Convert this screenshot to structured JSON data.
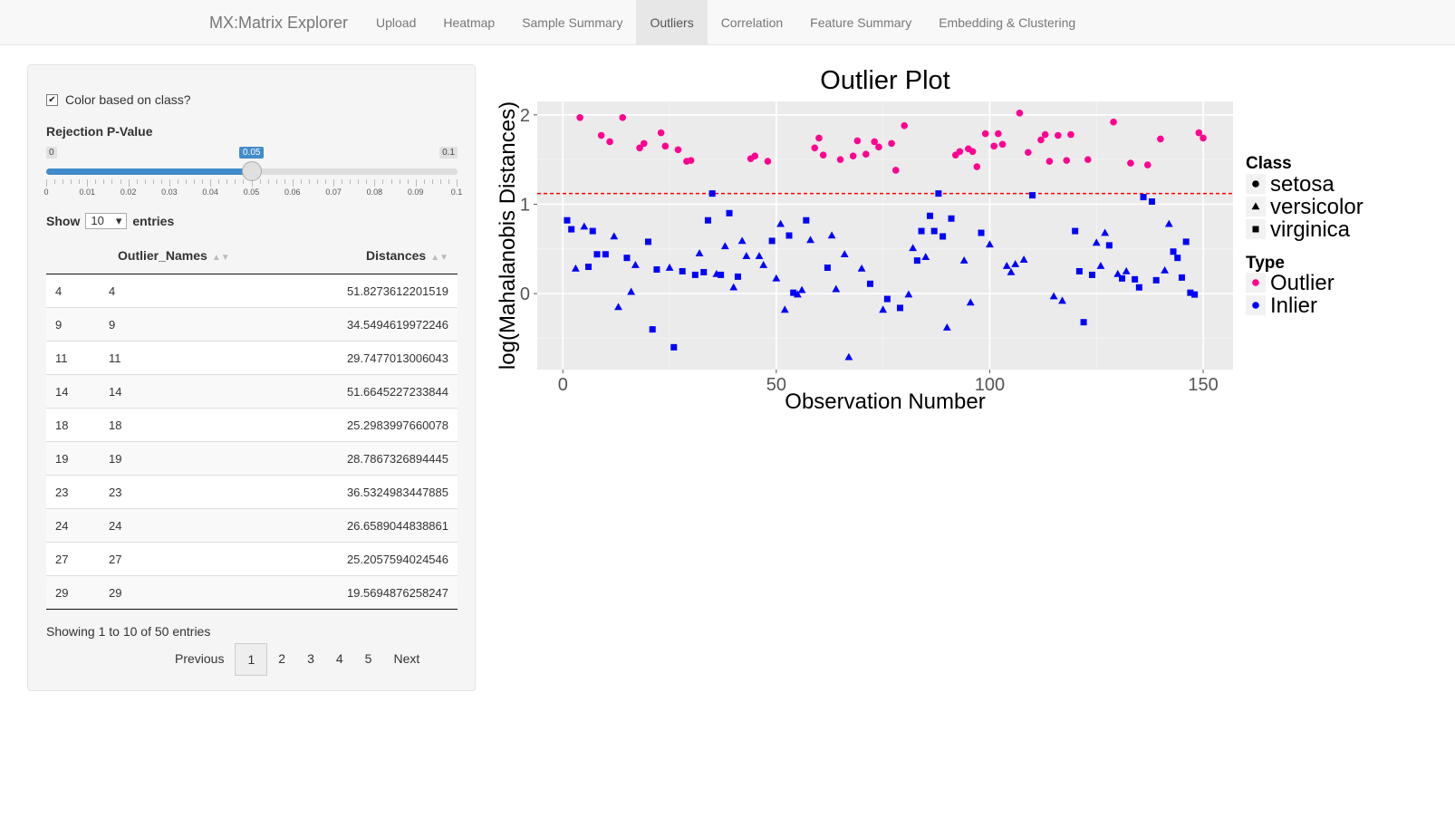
{
  "app_title": "MX:Matrix Explorer",
  "nav_items": [
    "Upload",
    "Heatmap",
    "Sample Summary",
    "Outliers",
    "Correlation",
    "Feature Summary",
    "Embedding & Clustering"
  ],
  "active_tab": "Outliers",
  "sidebar": {
    "checkbox_label": "Color based on class?",
    "checkbox_checked": true,
    "slider": {
      "label": "Rejection P-Value",
      "min": "0",
      "max": "0.1",
      "value": "0.05",
      "fraction": 0.5,
      "ticks": [
        "0",
        "0.01",
        "0.02",
        "0.03",
        "0.04",
        "0.05",
        "0.06",
        "0.07",
        "0.08",
        "0.09",
        "0.1"
      ]
    },
    "show_label": "Show",
    "show_value": "10",
    "entries_label": "entries",
    "table": {
      "headers": [
        "",
        "Outlier_Names",
        "Distances"
      ],
      "rows": [
        [
          "4",
          "4",
          "51.8273612201519"
        ],
        [
          "9",
          "9",
          "34.5494619972246"
        ],
        [
          "11",
          "11",
          "29.7477013006043"
        ],
        [
          "14",
          "14",
          "51.6645227233844"
        ],
        [
          "18",
          "18",
          "25.2983997660078"
        ],
        [
          "19",
          "19",
          "28.7867326894445"
        ],
        [
          "23",
          "23",
          "36.5324983447885"
        ],
        [
          "24",
          "24",
          "26.6589044838861"
        ],
        [
          "27",
          "27",
          "25.2057594024546"
        ],
        [
          "29",
          "29",
          "19.5694876258247"
        ]
      ]
    },
    "info": "Showing 1 to 10 of 50 entries",
    "pager": {
      "previous": "Previous",
      "pages": [
        "1",
        "2",
        "3",
        "4",
        "5"
      ],
      "current": "1",
      "next": "Next"
    }
  },
  "chart_data": {
    "type": "scatter",
    "title": "Outlier Plot",
    "xlabel": "Observation Number",
    "ylabel": "log(Mahalanobis Distances)",
    "xlim": [
      -6,
      157
    ],
    "ylim": [
      -0.85,
      2.15
    ],
    "xticks": [
      0,
      50,
      100,
      150
    ],
    "yticks": [
      0,
      1,
      2
    ],
    "threshold": 1.12,
    "grid": true,
    "legend_position": "right",
    "colors": {
      "outlier": "#ff0090",
      "inlier": "#0000ff",
      "threshold": "#ff0000",
      "panel": "#ebebeb"
    },
    "legend": {
      "class_title": "Class",
      "classes": [
        "setosa",
        "versicolor",
        "virginica"
      ],
      "type_title": "Type",
      "types": [
        "Outlier",
        "Inlier"
      ]
    },
    "points": [
      [
        4,
        1.97,
        "o",
        "s"
      ],
      [
        9,
        1.77,
        "o",
        "s"
      ],
      [
        11,
        1.7,
        "o",
        "s"
      ],
      [
        14,
        1.97,
        "o",
        "s"
      ],
      [
        18,
        1.63,
        "o",
        "s"
      ],
      [
        19,
        1.68,
        "o",
        "s"
      ],
      [
        23,
        1.8,
        "o",
        "s"
      ],
      [
        24,
        1.65,
        "o",
        "s"
      ],
      [
        27,
        1.61,
        "o",
        "s"
      ],
      [
        29,
        1.48,
        "o",
        "s"
      ],
      [
        30,
        1.49,
        "o",
        "s"
      ],
      [
        44,
        1.51,
        "o",
        "s"
      ],
      [
        45,
        1.54,
        "o",
        "s"
      ],
      [
        48,
        1.48,
        "o",
        "s"
      ],
      [
        59,
        1.63,
        "o",
        "s"
      ],
      [
        60,
        1.74,
        "o",
        "s"
      ],
      [
        61,
        1.55,
        "o",
        "s"
      ],
      [
        65,
        1.5,
        "o",
        "s"
      ],
      [
        68,
        1.54,
        "o",
        "s"
      ],
      [
        69,
        1.71,
        "o",
        "s"
      ],
      [
        71,
        1.56,
        "o",
        "s"
      ],
      [
        73,
        1.7,
        "o",
        "s"
      ],
      [
        74,
        1.64,
        "o",
        "s"
      ],
      [
        77,
        1.68,
        "o",
        "s"
      ],
      [
        78,
        1.38,
        "o",
        "s"
      ],
      [
        80,
        1.88,
        "o",
        "s"
      ],
      [
        92,
        1.55,
        "o",
        "s"
      ],
      [
        93,
        1.59,
        "o",
        "s"
      ],
      [
        95,
        1.62,
        "o",
        "s"
      ],
      [
        96,
        1.59,
        "o",
        "s"
      ],
      [
        97,
        1.42,
        "o",
        "s"
      ],
      [
        99,
        1.79,
        "o",
        "s"
      ],
      [
        101,
        1.65,
        "o",
        "s"
      ],
      [
        102,
        1.79,
        "o",
        "s"
      ],
      [
        103,
        1.67,
        "o",
        "s"
      ],
      [
        107,
        2.02,
        "o",
        "s"
      ],
      [
        109,
        1.58,
        "o",
        "s"
      ],
      [
        112,
        1.72,
        "o",
        "s"
      ],
      [
        113,
        1.78,
        "o",
        "s"
      ],
      [
        114,
        1.48,
        "o",
        "s"
      ],
      [
        116,
        1.77,
        "o",
        "s"
      ],
      [
        118,
        1.49,
        "o",
        "s"
      ],
      [
        119,
        1.78,
        "o",
        "s"
      ],
      [
        123,
        1.5,
        "o",
        "s"
      ],
      [
        129,
        1.92,
        "o",
        "s"
      ],
      [
        133,
        1.46,
        "o",
        "s"
      ],
      [
        137,
        1.44,
        "o",
        "s"
      ],
      [
        140,
        1.73,
        "o",
        "s"
      ],
      [
        149,
        1.8,
        "o",
        "s"
      ],
      [
        150,
        1.74,
        "o",
        "s"
      ],
      [
        1,
        0.82,
        "i",
        "g"
      ],
      [
        2,
        0.72,
        "i",
        "g"
      ],
      [
        3,
        0.28,
        "i",
        "v"
      ],
      [
        5,
        0.75,
        "i",
        "v"
      ],
      [
        6,
        0.3,
        "i",
        "g"
      ],
      [
        7,
        0.7,
        "i",
        "g"
      ],
      [
        8,
        0.44,
        "i",
        "g"
      ],
      [
        10,
        0.44,
        "i",
        "g"
      ],
      [
        12,
        0.64,
        "i",
        "v"
      ],
      [
        13,
        -0.15,
        "i",
        "v"
      ],
      [
        15,
        0.4,
        "i",
        "g"
      ],
      [
        16,
        0.02,
        "i",
        "v"
      ],
      [
        17,
        0.32,
        "i",
        "v"
      ],
      [
        20,
        0.58,
        "i",
        "g"
      ],
      [
        21,
        -0.4,
        "i",
        "g"
      ],
      [
        22,
        0.27,
        "i",
        "g"
      ],
      [
        25,
        0.29,
        "i",
        "v"
      ],
      [
        26,
        -0.6,
        "i",
        "g"
      ],
      [
        28,
        0.25,
        "i",
        "g"
      ],
      [
        31,
        0.21,
        "i",
        "g"
      ],
      [
        32,
        0.45,
        "i",
        "v"
      ],
      [
        33,
        0.24,
        "i",
        "g"
      ],
      [
        34,
        0.82,
        "i",
        "g"
      ],
      [
        35,
        1.12,
        "i",
        "g"
      ],
      [
        36,
        0.22,
        "i",
        "v"
      ],
      [
        37,
        0.21,
        "i",
        "g"
      ],
      [
        38,
        0.53,
        "i",
        "v"
      ],
      [
        39,
        0.9,
        "i",
        "g"
      ],
      [
        40,
        0.07,
        "i",
        "v"
      ],
      [
        41,
        0.19,
        "i",
        "g"
      ],
      [
        42,
        0.59,
        "i",
        "v"
      ],
      [
        43,
        0.42,
        "i",
        "v"
      ],
      [
        46,
        0.42,
        "i",
        "v"
      ],
      [
        47,
        0.32,
        "i",
        "v"
      ],
      [
        49,
        0.59,
        "i",
        "g"
      ],
      [
        50,
        0.17,
        "i",
        "v"
      ],
      [
        51,
        0.78,
        "i",
        "v"
      ],
      [
        52,
        -0.18,
        "i",
        "v"
      ],
      [
        53,
        0.65,
        "i",
        "g"
      ],
      [
        54,
        0.01,
        "i",
        "g"
      ],
      [
        55,
        -0.01,
        "i",
        "v"
      ],
      [
        56,
        0.04,
        "i",
        "v"
      ],
      [
        57,
        0.82,
        "i",
        "g"
      ],
      [
        58,
        0.6,
        "i",
        "v"
      ],
      [
        62,
        0.29,
        "i",
        "g"
      ],
      [
        63,
        0.65,
        "i",
        "v"
      ],
      [
        64,
        0.05,
        "i",
        "v"
      ],
      [
        66,
        0.44,
        "i",
        "v"
      ],
      [
        67,
        -0.71,
        "i",
        "v"
      ],
      [
        70,
        0.28,
        "i",
        "v"
      ],
      [
        72,
        0.11,
        "i",
        "g"
      ],
      [
        75,
        -0.18,
        "i",
        "v"
      ],
      [
        76,
        -0.06,
        "i",
        "g"
      ],
      [
        79,
        -0.16,
        "i",
        "g"
      ],
      [
        81,
        -0.01,
        "i",
        "v"
      ],
      [
        82,
        0.51,
        "i",
        "v"
      ],
      [
        83,
        0.37,
        "i",
        "g"
      ],
      [
        84,
        0.7,
        "i",
        "g"
      ],
      [
        85,
        0.41,
        "i",
        "v"
      ],
      [
        86,
        0.87,
        "i",
        "g"
      ],
      [
        87,
        0.7,
        "i",
        "g"
      ],
      [
        88,
        1.12,
        "i",
        "g"
      ],
      [
        89,
        0.64,
        "i",
        "g"
      ],
      [
        90,
        -0.38,
        "i",
        "v"
      ],
      [
        91,
        0.84,
        "i",
        "g"
      ],
      [
        94,
        0.37,
        "i",
        "v"
      ],
      [
        95.5,
        -0.1,
        "i",
        "v"
      ],
      [
        98,
        0.68,
        "i",
        "g"
      ],
      [
        100,
        0.55,
        "i",
        "v"
      ],
      [
        104,
        0.31,
        "i",
        "v"
      ],
      [
        105,
        0.24,
        "i",
        "v"
      ],
      [
        106,
        0.33,
        "i",
        "v"
      ],
      [
        108,
        0.38,
        "i",
        "v"
      ],
      [
        110,
        1.1,
        "i",
        "g"
      ],
      [
        115,
        -0.03,
        "i",
        "v"
      ],
      [
        117,
        -0.08,
        "i",
        "v"
      ],
      [
        120,
        0.7,
        "i",
        "g"
      ],
      [
        121,
        0.25,
        "i",
        "g"
      ],
      [
        122,
        -0.32,
        "i",
        "g"
      ],
      [
        124,
        0.21,
        "i",
        "g"
      ],
      [
        125,
        0.57,
        "i",
        "v"
      ],
      [
        126,
        0.31,
        "i",
        "v"
      ],
      [
        127,
        0.68,
        "i",
        "v"
      ],
      [
        128,
        0.54,
        "i",
        "g"
      ],
      [
        130,
        0.22,
        "i",
        "v"
      ],
      [
        131,
        0.17,
        "i",
        "g"
      ],
      [
        132,
        0.25,
        "i",
        "v"
      ],
      [
        134,
        0.16,
        "i",
        "g"
      ],
      [
        135,
        0.07,
        "i",
        "g"
      ],
      [
        136,
        1.08,
        "i",
        "g"
      ],
      [
        138,
        1.03,
        "i",
        "g"
      ],
      [
        139,
        0.15,
        "i",
        "g"
      ],
      [
        141,
        0.26,
        "i",
        "v"
      ],
      [
        142,
        0.78,
        "i",
        "v"
      ],
      [
        143,
        0.47,
        "i",
        "g"
      ],
      [
        144,
        0.4,
        "i",
        "g"
      ],
      [
        145,
        0.18,
        "i",
        "g"
      ],
      [
        146,
        0.58,
        "i",
        "g"
      ],
      [
        147,
        0.01,
        "i",
        "g"
      ],
      [
        148,
        -0.01,
        "i",
        "g"
      ]
    ]
  }
}
